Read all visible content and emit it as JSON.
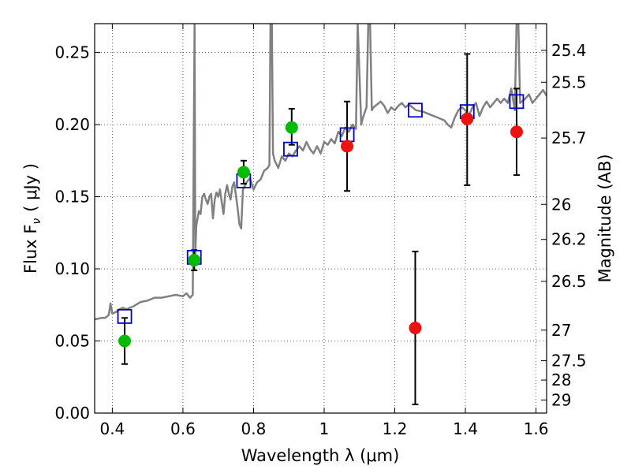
{
  "chart_data": {
    "type": "scatter",
    "xlabel": "Wavelength  λ (μm)",
    "ylabel": "Flux  F",
    "ylabel_sub": "ν",
    "ylabel_unit": "( μJy )",
    "ylabel_right": "Magnitude (AB)",
    "xlim": [
      0.35,
      1.63
    ],
    "ylim": [
      0.0,
      0.27
    ],
    "grid": true,
    "x_ticks": [
      {
        "value": 0.4,
        "label": "0.4"
      },
      {
        "value": 0.6,
        "label": "0.6"
      },
      {
        "value": 0.8,
        "label": "0.8"
      },
      {
        "value": 1.0,
        "label": "1"
      },
      {
        "value": 1.2,
        "label": "1.2"
      },
      {
        "value": 1.4,
        "label": "1.4"
      },
      {
        "value": 1.6,
        "label": "1.6"
      }
    ],
    "y_ticks": [
      {
        "value": 0.0,
        "label": "0.00"
      },
      {
        "value": 0.05,
        "label": "0.05"
      },
      {
        "value": 0.1,
        "label": "0.10"
      },
      {
        "value": 0.15,
        "label": "0.15"
      },
      {
        "value": 0.2,
        "label": "0.20"
      },
      {
        "value": 0.25,
        "label": "0.25"
      }
    ],
    "right_ticks": [
      {
        "label": "25.4",
        "flux": 0.2515
      },
      {
        "label": "25.5",
        "flux": 0.2294
      },
      {
        "label": "25.7",
        "flux": 0.1907
      },
      {
        "label": "26",
        "flux": 0.1447
      },
      {
        "label": "26.2",
        "flux": 0.1204
      },
      {
        "label": "26.5",
        "flux": 0.0913
      },
      {
        "label": "27",
        "flux": 0.0575
      },
      {
        "label": "27.5",
        "flux": 0.0363
      },
      {
        "label": "28",
        "flux": 0.0229
      },
      {
        "label": "29",
        "flux": 0.0091
      }
    ],
    "model_spectrum": {
      "color": "#808080",
      "points": [
        [
          0.35,
          0.065
        ],
        [
          0.37,
          0.066
        ],
        [
          0.38,
          0.066
        ],
        [
          0.39,
          0.068
        ],
        [
          0.395,
          0.076
        ],
        [
          0.4,
          0.069
        ],
        [
          0.41,
          0.07
        ],
        [
          0.42,
          0.072
        ],
        [
          0.43,
          0.073
        ],
        [
          0.44,
          0.072
        ],
        [
          0.45,
          0.073
        ],
        [
          0.46,
          0.074
        ],
        [
          0.48,
          0.077
        ],
        [
          0.5,
          0.078
        ],
        [
          0.52,
          0.08
        ],
        [
          0.54,
          0.08
        ],
        [
          0.56,
          0.081
        ],
        [
          0.58,
          0.082
        ],
        [
          0.6,
          0.081
        ],
        [
          0.61,
          0.083
        ],
        [
          0.62,
          0.08
        ],
        [
          0.628,
          0.082
        ],
        [
          0.633,
          0.27
        ],
        [
          0.635,
          0.11
        ],
        [
          0.638,
          0.13
        ],
        [
          0.645,
          0.14
        ],
        [
          0.65,
          0.138
        ],
        [
          0.655,
          0.15
        ],
        [
          0.66,
          0.152
        ],
        [
          0.665,
          0.148
        ],
        [
          0.67,
          0.145
        ],
        [
          0.675,
          0.15
        ],
        [
          0.68,
          0.152
        ],
        [
          0.685,
          0.135
        ],
        [
          0.69,
          0.148
        ],
        [
          0.695,
          0.153
        ],
        [
          0.7,
          0.15
        ],
        [
          0.705,
          0.155
        ],
        [
          0.71,
          0.146
        ],
        [
          0.715,
          0.138
        ],
        [
          0.72,
          0.152
        ],
        [
          0.725,
          0.158
        ],
        [
          0.73,
          0.152
        ],
        [
          0.735,
          0.148
        ],
        [
          0.74,
          0.157
        ],
        [
          0.745,
          0.16
        ],
        [
          0.75,
          0.151
        ],
        [
          0.755,
          0.142
        ],
        [
          0.76,
          0.131
        ],
        [
          0.765,
          0.128
        ],
        [
          0.77,
          0.155
        ],
        [
          0.78,
          0.16
        ],
        [
          0.79,
          0.163
        ],
        [
          0.8,
          0.155
        ],
        [
          0.81,
          0.16
        ],
        [
          0.82,
          0.162
        ],
        [
          0.83,
          0.168
        ],
        [
          0.84,
          0.17
        ],
        [
          0.845,
          0.172
        ],
        [
          0.848,
          0.27
        ],
        [
          0.852,
          0.27
        ],
        [
          0.855,
          0.18
        ],
        [
          0.86,
          0.175
        ],
        [
          0.87,
          0.17
        ],
        [
          0.88,
          0.178
        ],
        [
          0.89,
          0.175
        ],
        [
          0.9,
          0.18
        ],
        [
          0.91,
          0.178
        ],
        [
          0.92,
          0.182
        ],
        [
          0.93,
          0.185
        ],
        [
          0.94,
          0.182
        ],
        [
          0.95,
          0.188
        ],
        [
          0.96,
          0.183
        ],
        [
          0.97,
          0.18
        ],
        [
          0.98,
          0.185
        ],
        [
          0.99,
          0.18
        ],
        [
          1.0,
          0.188
        ],
        [
          1.01,
          0.186
        ],
        [
          1.02,
          0.19
        ],
        [
          1.03,
          0.187
        ],
        [
          1.04,
          0.195
        ],
        [
          1.05,
          0.192
        ],
        [
          1.06,
          0.198
        ],
        [
          1.07,
          0.195
        ],
        [
          1.08,
          0.2
        ],
        [
          1.09,
          0.197
        ],
        [
          1.095,
          0.27
        ],
        [
          1.105,
          0.2
        ],
        [
          1.11,
          0.205
        ],
        [
          1.12,
          0.212
        ],
        [
          1.125,
          0.27
        ],
        [
          1.13,
          0.27
        ],
        [
          1.135,
          0.21
        ],
        [
          1.14,
          0.212
        ],
        [
          1.15,
          0.214
        ],
        [
          1.16,
          0.216
        ],
        [
          1.17,
          0.213
        ],
        [
          1.18,
          0.208
        ],
        [
          1.19,
          0.212
        ],
        [
          1.2,
          0.21
        ],
        [
          1.21,
          0.213
        ],
        [
          1.22,
          0.215
        ],
        [
          1.23,
          0.212
        ],
        [
          1.24,
          0.214
        ],
        [
          1.25,
          0.212
        ],
        [
          1.26,
          0.21
        ],
        [
          1.28,
          0.209
        ],
        [
          1.3,
          0.207
        ],
        [
          1.32,
          0.205
        ],
        [
          1.34,
          0.203
        ],
        [
          1.35,
          0.2
        ],
        [
          1.36,
          0.198
        ],
        [
          1.37,
          0.205
        ],
        [
          1.38,
          0.21
        ],
        [
          1.39,
          0.212
        ],
        [
          1.4,
          0.21
        ],
        [
          1.41,
          0.206
        ],
        [
          1.42,
          0.212
        ],
        [
          1.43,
          0.215
        ],
        [
          1.44,
          0.206
        ],
        [
          1.45,
          0.212
        ],
        [
          1.46,
          0.216
        ],
        [
          1.47,
          0.212
        ],
        [
          1.48,
          0.215
        ],
        [
          1.49,
          0.218
        ],
        [
          1.5,
          0.215
        ],
        [
          1.51,
          0.218
        ],
        [
          1.52,
          0.215
        ],
        [
          1.53,
          0.225
        ],
        [
          1.54,
          0.21
        ],
        [
          1.545,
          0.27
        ],
        [
          1.55,
          0.27
        ],
        [
          1.555,
          0.215
        ],
        [
          1.56,
          0.216
        ],
        [
          1.57,
          0.218
        ],
        [
          1.58,
          0.221
        ],
        [
          1.59,
          0.215
        ],
        [
          1.6,
          0.218
        ],
        [
          1.61,
          0.221
        ],
        [
          1.62,
          0.224
        ],
        [
          1.63,
          0.22
        ]
      ]
    },
    "model_photometry": {
      "color": "#0000cc",
      "points": [
        [
          0.435,
          0.067
        ],
        [
          0.632,
          0.108
        ],
        [
          0.772,
          0.161
        ],
        [
          0.905,
          0.183
        ],
        [
          1.065,
          0.193
        ],
        [
          1.258,
          0.21
        ],
        [
          1.405,
          0.209
        ],
        [
          1.545,
          0.216
        ]
      ]
    },
    "observed_green": {
      "color": "#00bb00",
      "points": [
        {
          "x": 0.435,
          "y": 0.05,
          "err_low": 0.034,
          "err_high": 0.066
        },
        {
          "x": 0.632,
          "y": 0.106,
          "err_low": 0.099,
          "err_high": 0.113
        },
        {
          "x": 0.772,
          "y": 0.167,
          "err_low": 0.159,
          "err_high": 0.175
        },
        {
          "x": 0.908,
          "y": 0.198,
          "err_low": 0.186,
          "err_high": 0.211
        }
      ]
    },
    "observed_red": {
      "color": "#ee1111",
      "points": [
        {
          "x": 1.065,
          "y": 0.185,
          "err_low": 0.154,
          "err_high": 0.216
        },
        {
          "x": 1.258,
          "y": 0.059,
          "err_low": 0.006,
          "err_high": 0.112
        },
        {
          "x": 1.405,
          "y": 0.204,
          "err_low": 0.158,
          "err_high": 0.249
        },
        {
          "x": 1.545,
          "y": 0.195,
          "err_low": 0.165,
          "err_high": 0.225
        }
      ]
    }
  }
}
